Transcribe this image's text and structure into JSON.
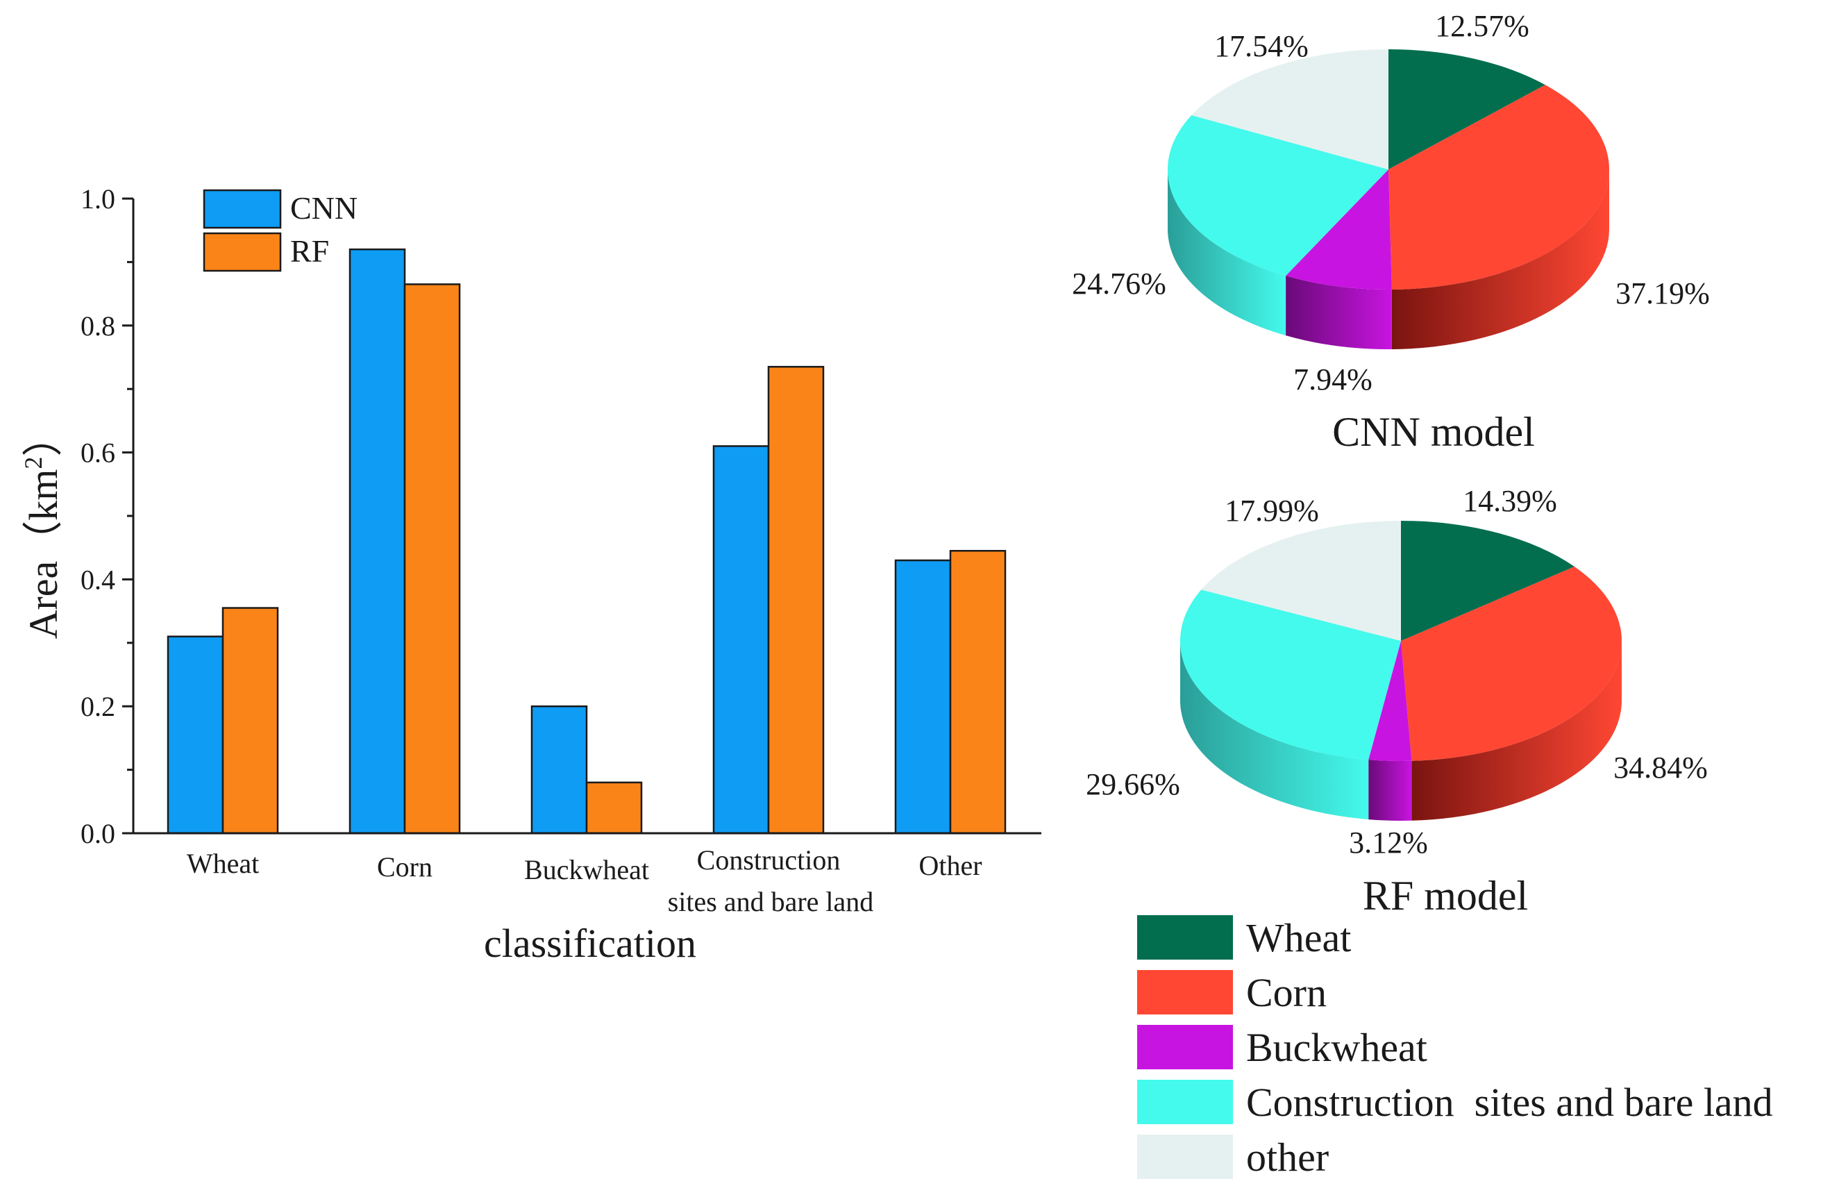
{
  "chart_data": [
    {
      "type": "bar",
      "title": "",
      "xlabel": "classification",
      "ylabel": "Area（km²）",
      "ylabel_main": "Area（km",
      "ylabel_sup": "2",
      "ylabel_close": "）",
      "ylim": [
        0,
        1.0
      ],
      "yticks": [
        "0.0",
        "0.2",
        "0.4",
        "0.6",
        "0.8",
        "1.0"
      ],
      "categories": [
        "Wheat",
        "Corn",
        "Buckwheat",
        "Construction sites and bare land",
        "Other"
      ],
      "category_lines": [
        [
          "Wheat"
        ],
        [
          "Corn"
        ],
        [
          "Buckwheat"
        ],
        [
          "Construction",
          "sites and bare land"
        ],
        [
          "Other"
        ]
      ],
      "series": [
        {
          "name": "CNN",
          "color": "#0e9cf4",
          "values": [
            0.31,
            0.92,
            0.2,
            0.61,
            0.43
          ]
        },
        {
          "name": "RF",
          "color": "#fa8418",
          "values": [
            0.355,
            0.865,
            0.08,
            0.735,
            0.445
          ]
        }
      ],
      "legend_position": "top-left"
    },
    {
      "type": "pie",
      "title": "CNN model",
      "labels": [
        "Wheat",
        "Corn",
        "Buckwheat",
        "Construction sites and bare land",
        "other"
      ],
      "values": [
        12.57,
        37.19,
        7.94,
        24.76,
        17.54
      ],
      "value_labels": [
        "12.57%",
        "37.19%",
        "7.94%",
        "24.76%",
        "17.54%"
      ]
    },
    {
      "type": "pie",
      "title": "RF model",
      "labels": [
        "Wheat",
        "Corn",
        "Buckwheat",
        "Construction sites and bare land",
        "other"
      ],
      "values": [
        14.39,
        34.84,
        3.12,
        29.66,
        17.99
      ],
      "value_labels": [
        "14.39%",
        "34.84%",
        "3.12%",
        "29.66%",
        "17.99%"
      ]
    }
  ],
  "pie_legend": [
    {
      "label": "Wheat",
      "color": "#026e4e",
      "dark": "#014a33"
    },
    {
      "label": "Corn",
      "color": "#ff4733",
      "dark": "#7a1410"
    },
    {
      "label": "Buckwheat",
      "color": "#c814e0",
      "dark": "#6a0a78"
    },
    {
      "label": "Construction  sites and bare land",
      "color": "#44faec",
      "dark": "#2a9e98"
    },
    {
      "label": "other",
      "color": "#e5f1f0",
      "dark": "#9fb0ae"
    }
  ]
}
